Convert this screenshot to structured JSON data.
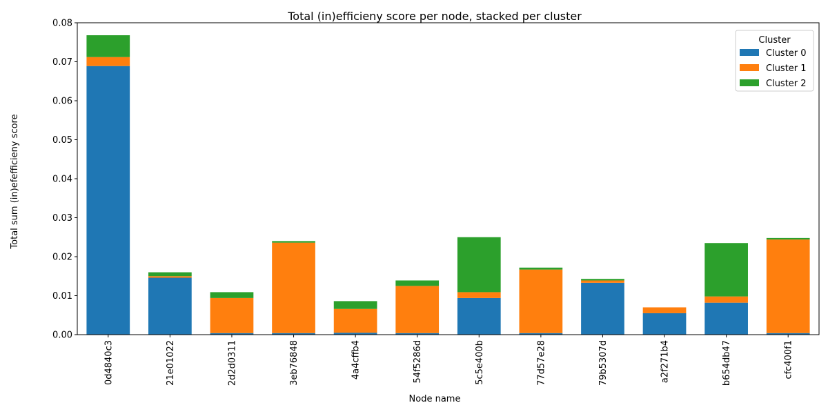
{
  "chart_data": {
    "type": "bar",
    "stacked": true,
    "title": "Total (in)efficieny score per node, stacked per cluster",
    "xlabel": "Node name",
    "ylabel": "Total sum (in)efefficieny score",
    "categories": [
      "0d4840c3",
      "21e01022",
      "2d2d0311",
      "3eb76848",
      "4a4cffb4",
      "54f5286d",
      "5c5e400b",
      "77d57e28",
      "79b5307d",
      "a2f271b4",
      "b654db47",
      "cfc400f1"
    ],
    "series": [
      {
        "name": "Cluster 0",
        "color": "#1f77b4",
        "values": [
          0.0689,
          0.0146,
          0.0004,
          0.0004,
          0.0005,
          0.0004,
          0.0094,
          0.0004,
          0.0133,
          0.0055,
          0.0082,
          0.0004
        ]
      },
      {
        "name": "Cluster 1",
        "color": "#ff7f0e",
        "values": [
          0.0023,
          0.0004,
          0.009,
          0.0232,
          0.0061,
          0.0121,
          0.0015,
          0.0163,
          0.0006,
          0.0015,
          0.0016,
          0.024
        ]
      },
      {
        "name": "Cluster 2",
        "color": "#2ca02c",
        "values": [
          0.0056,
          0.001,
          0.0015,
          0.0004,
          0.002,
          0.0014,
          0.0141,
          0.0005,
          0.0004,
          0.0,
          0.0137,
          0.0004
        ]
      }
    ],
    "ylim": [
      0,
      0.08
    ],
    "yticks": [
      "0.00",
      "0.01",
      "0.02",
      "0.03",
      "0.04",
      "0.05",
      "0.06",
      "0.07",
      "0.08"
    ],
    "grid": false,
    "legend": {
      "title": "Cluster",
      "placement": "top-right"
    }
  }
}
